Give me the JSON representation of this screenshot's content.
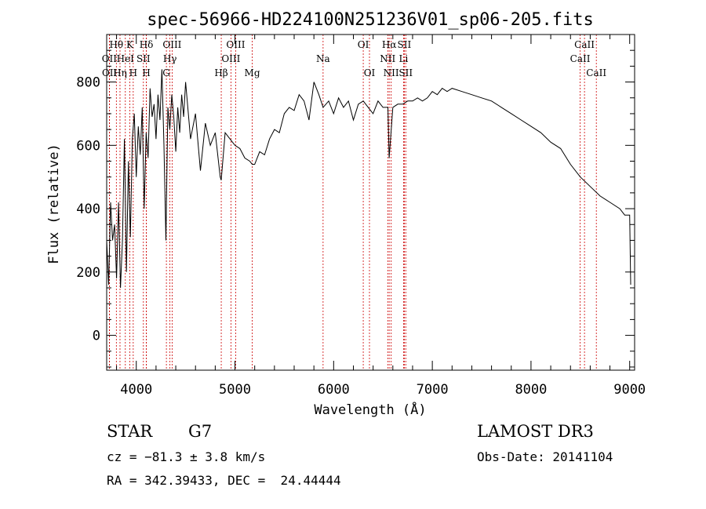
{
  "chart_data": {
    "type": "line",
    "title": "spec-56966-HD224100N251236V01_sp06-205.fits",
    "xlabel": "Wavelength (Å)",
    "ylabel": "Flux (relative)",
    "xlim": [
      3700,
      9050
    ],
    "ylim": [
      -110,
      950
    ],
    "x_ticks": [
      4000,
      5000,
      6000,
      7000,
      8000,
      9000
    ],
    "y_ticks": [
      0,
      200,
      400,
      600,
      800
    ],
    "grid": false,
    "series": [
      {
        "name": "flux",
        "x": [
          3700,
          3720,
          3740,
          3760,
          3780,
          3800,
          3820,
          3840,
          3860,
          3880,
          3900,
          3920,
          3940,
          3960,
          3980,
          4000,
          4020,
          4040,
          4060,
          4080,
          4100,
          4120,
          4140,
          4160,
          4180,
          4200,
          4220,
          4240,
          4260,
          4280,
          4300,
          4320,
          4340,
          4360,
          4380,
          4400,
          4420,
          4440,
          4460,
          4480,
          4500,
          4550,
          4600,
          4650,
          4700,
          4750,
          4800,
          4850,
          4861,
          4900,
          4950,
          5000,
          5050,
          5100,
          5150,
          5175,
          5200,
          5250,
          5300,
          5350,
          5400,
          5450,
          5500,
          5550,
          5600,
          5650,
          5700,
          5750,
          5800,
          5850,
          5893,
          5950,
          6000,
          6050,
          6100,
          6150,
          6200,
          6250,
          6300,
          6350,
          6400,
          6450,
          6500,
          6550,
          6563,
          6600,
          6650,
          6700,
          6750,
          6800,
          6850,
          6900,
          6950,
          7000,
          7050,
          7100,
          7150,
          7200,
          7300,
          7400,
          7500,
          7600,
          7700,
          7800,
          7900,
          8000,
          8100,
          8200,
          8300,
          8400,
          8500,
          8600,
          8700,
          8800,
          8900,
          8950,
          9000,
          9010
        ],
        "y": [
          300,
          160,
          420,
          300,
          350,
          180,
          420,
          150,
          300,
          620,
          200,
          550,
          310,
          620,
          700,
          500,
          660,
          570,
          720,
          400,
          640,
          560,
          780,
          690,
          730,
          620,
          760,
          680,
          840,
          600,
          300,
          720,
          650,
          760,
          690,
          580,
          720,
          640,
          760,
          690,
          800,
          620,
          700,
          520,
          670,
          600,
          640,
          500,
          490,
          640,
          620,
          600,
          590,
          560,
          550,
          540,
          540,
          580,
          570,
          620,
          650,
          640,
          700,
          720,
          710,
          760,
          740,
          680,
          800,
          760,
          720,
          740,
          700,
          750,
          720,
          740,
          680,
          730,
          740,
          720,
          700,
          740,
          720,
          720,
          560,
          720,
          730,
          730,
          740,
          740,
          750,
          740,
          750,
          770,
          760,
          780,
          770,
          780,
          770,
          760,
          750,
          740,
          720,
          700,
          680,
          660,
          640,
          610,
          590,
          540,
          500,
          470,
          440,
          420,
          400,
          380,
          380,
          160
        ],
        "style": "solid"
      }
    ],
    "spectral_lines": [
      {
        "name": "Hθ",
        "wavelength": 3798,
        "row": 0
      },
      {
        "name": "OII",
        "wavelength": 3727,
        "row": 1
      },
      {
        "name": "OII",
        "wavelength": 3729,
        "row": 2
      },
      {
        "name": "Hη",
        "wavelength": 3835,
        "row": 2
      },
      {
        "name": "HeI",
        "wavelength": 3889,
        "row": 1
      },
      {
        "name": "K",
        "wavelength": 3934,
        "row": 0
      },
      {
        "name": "H",
        "wavelength": 3969,
        "row": 2
      },
      {
        "name": "SII",
        "wavelength": 4072,
        "row": 1
      },
      {
        "name": "Hδ",
        "wavelength": 4102,
        "row": 0
      },
      {
        "name": "H",
        "wavelength": 4102,
        "row": 2
      },
      {
        "name": "Hγ",
        "wavelength": 4341,
        "row": 1
      },
      {
        "name": "OIII",
        "wavelength": 4363,
        "row": 0
      },
      {
        "name": "G",
        "wavelength": 4305,
        "row": 2
      },
      {
        "name": "Hβ",
        "wavelength": 4861,
        "row": 2
      },
      {
        "name": "OIII",
        "wavelength": 4959,
        "row": 1
      },
      {
        "name": "OIII",
        "wavelength": 5007,
        "row": 0
      },
      {
        "name": "Mg",
        "wavelength": 5175,
        "row": 2
      },
      {
        "name": "Na",
        "wavelength": 5893,
        "row": 1
      },
      {
        "name": "OI",
        "wavelength": 6300,
        "row": 0
      },
      {
        "name": "OI",
        "wavelength": 6363,
        "row": 2
      },
      {
        "name": "NII",
        "wavelength": 6548,
        "row": 1
      },
      {
        "name": "NII",
        "wavelength": 6583,
        "row": 2
      },
      {
        "name": "Hα",
        "wavelength": 6563,
        "row": 0
      },
      {
        "name": "SII",
        "wavelength": 6716,
        "row": 0
      },
      {
        "name": "Li",
        "wavelength": 6708,
        "row": 1
      },
      {
        "name": "SII",
        "wavelength": 6731,
        "row": 2
      },
      {
        "name": "CaII",
        "wavelength": 8498,
        "row": 1
      },
      {
        "name": "CaII",
        "wavelength": 8542,
        "row": 0
      },
      {
        "name": "CaII",
        "wavelength": 8662,
        "row": 2
      }
    ]
  },
  "info": {
    "class": "STAR",
    "subclass": "G7",
    "survey": "LAMOST DR3",
    "cz": "cz = −81.3 ± 3.8 km/s",
    "obs_date": "Obs-Date: 20141104",
    "coords": "RA = 342.39433, DEC =  24.44444"
  },
  "colors": {
    "spectrum": "#000000",
    "line_marker": "#cc0000",
    "axes": "#000000"
  }
}
